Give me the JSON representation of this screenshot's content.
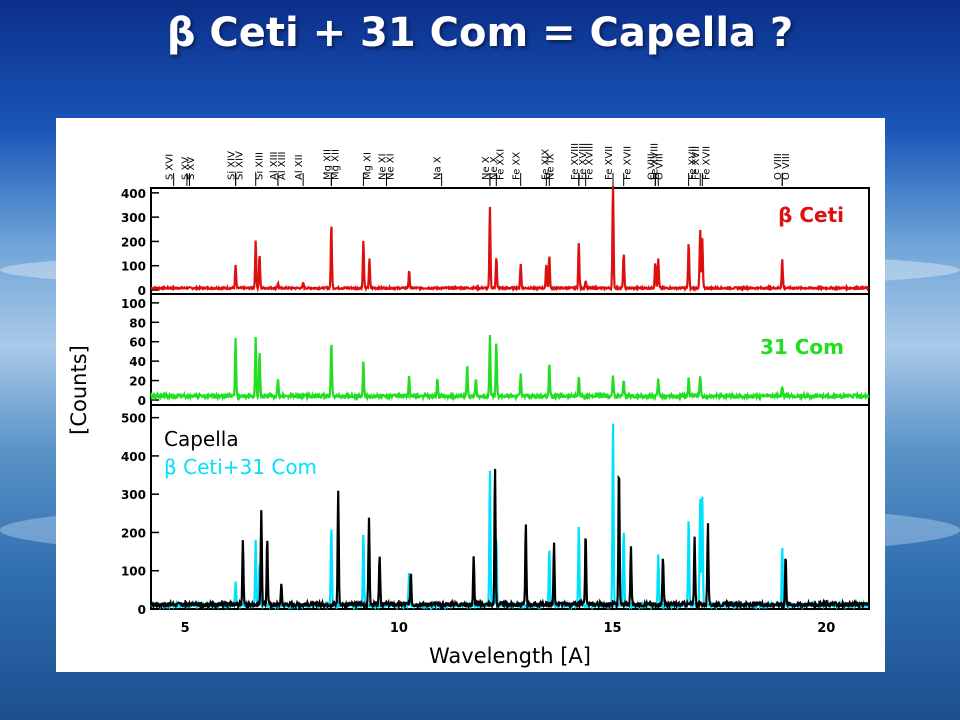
{
  "slide": {
    "title": "β Ceti + 31 Com = Capella ?"
  },
  "chart_data": {
    "type": "line",
    "xlabel": "Wavelength [A]",
    "ylabel": "[Counts]",
    "xlim": [
      4.2,
      21.0
    ],
    "x_ticks": [
      5,
      10,
      15,
      20
    ],
    "line_labels": [
      {
        "label": "S XVI",
        "x": 4.73
      },
      {
        "label": "S XV",
        "x": 5.04
      },
      {
        "label": "S XV",
        "x": 5.1
      },
      {
        "label": "Si XIV",
        "x": 6.18
      },
      {
        "label": "Si XIV",
        "x": 6.18
      },
      {
        "label": "Si XIII",
        "x": 6.65
      },
      {
        "label": "Al XIII",
        "x": 7.17
      },
      {
        "label": "Al XIII",
        "x": 7.17
      },
      {
        "label": "Al XII",
        "x": 7.76
      },
      {
        "label": "Mg XII",
        "x": 8.42
      },
      {
        "label": "Mg XII",
        "x": 8.42
      },
      {
        "label": "Mg XI",
        "x": 9.17
      },
      {
        "label": "Ne XI",
        "x": 9.71
      },
      {
        "label": "Ne XI",
        "x": 9.71
      },
      {
        "label": "Na X",
        "x": 11.0
      },
      {
        "label": "Ne X",
        "x": 12.13
      },
      {
        "label": "Ne X",
        "x": 12.13
      },
      {
        "label": "Fe XXI",
        "x": 12.28
      },
      {
        "label": "Fe XX",
        "x": 12.85
      },
      {
        "label": "Ne IX",
        "x": 13.45
      },
      {
        "label": "Fe XIX",
        "x": 13.52
      },
      {
        "label": "Fe XVIII",
        "x": 14.21
      },
      {
        "label": "Fe XVIII",
        "x": 14.21
      },
      {
        "label": "Fe XVIII",
        "x": 14.37
      },
      {
        "label": "Fe XVII",
        "x": 15.01
      },
      {
        "label": "Fe XVII",
        "x": 15.26
      },
      {
        "label": "O VIII",
        "x": 16.0
      },
      {
        "label": "O VIII",
        "x": 16.0
      },
      {
        "label": "Fe XVIII",
        "x": 16.07
      },
      {
        "label": "Fe XVII",
        "x": 16.78
      },
      {
        "label": "Fe XVII",
        "x": 17.05
      },
      {
        "label": "Fe XVII",
        "x": 17.1
      },
      {
        "label": "O VIII",
        "x": 18.97
      },
      {
        "label": "O VIII",
        "x": 18.97
      }
    ],
    "panels": [
      {
        "name": "beta-ceti",
        "legend": [
          "β Ceti"
        ],
        "legend_color": "#dd1010",
        "line_color": "#dd1010",
        "ylim": [
          0,
          420
        ],
        "y_ticks": [
          0,
          100,
          200,
          300,
          400
        ],
        "baseline": 8,
        "peaks": [
          [
            6.18,
            95
          ],
          [
            6.65,
            195
          ],
          [
            6.74,
            140
          ],
          [
            7.17,
            20
          ],
          [
            7.76,
            22
          ],
          [
            8.42,
            265
          ],
          [
            9.17,
            200
          ],
          [
            9.31,
            120
          ],
          [
            10.24,
            70
          ],
          [
            12.13,
            335
          ],
          [
            12.28,
            130
          ],
          [
            12.85,
            100
          ],
          [
            13.45,
            100
          ],
          [
            13.52,
            135
          ],
          [
            14.21,
            185
          ],
          [
            14.37,
            30
          ],
          [
            15.01,
            440
          ],
          [
            15.26,
            145
          ],
          [
            16.0,
            110
          ],
          [
            16.07,
            120
          ],
          [
            16.78,
            190
          ],
          [
            17.05,
            240
          ],
          [
            17.1,
            205
          ],
          [
            18.97,
            120
          ]
        ]
      },
      {
        "name": "31-com",
        "legend": [
          "31 Com"
        ],
        "legend_color": "#22dd22",
        "line_color": "#22dd22",
        "ylim": [
          0,
          105
        ],
        "y_ticks": [
          0,
          20,
          40,
          60,
          80,
          100
        ],
        "baseline": 4,
        "peaks": [
          [
            6.18,
            60
          ],
          [
            6.65,
            60
          ],
          [
            6.74,
            45
          ],
          [
            7.17,
            18
          ],
          [
            8.42,
            55
          ],
          [
            9.17,
            35
          ],
          [
            10.24,
            20
          ],
          [
            10.9,
            18
          ],
          [
            11.6,
            32
          ],
          [
            11.8,
            18
          ],
          [
            12.13,
            62
          ],
          [
            12.28,
            55
          ],
          [
            12.85,
            25
          ],
          [
            13.52,
            35
          ],
          [
            14.21,
            20
          ],
          [
            15.01,
            22
          ],
          [
            15.26,
            15
          ],
          [
            16.07,
            18
          ],
          [
            16.78,
            20
          ],
          [
            17.05,
            22
          ],
          [
            18.97,
            10
          ]
        ]
      },
      {
        "name": "capella",
        "legend": [
          "Capella",
          "β Ceti+31 Com"
        ],
        "legend_colors": [
          "#000000",
          "#00e0ff"
        ],
        "series": [
          {
            "name": "Capella",
            "color": "#000000",
            "baseline": 12,
            "peaks": [
              [
                6.35,
                170
              ],
              [
                6.78,
                250
              ],
              [
                6.92,
                175
              ],
              [
                7.25,
                50
              ],
              [
                8.58,
                300
              ],
              [
                9.3,
                230
              ],
              [
                9.55,
                130
              ],
              [
                10.28,
                85
              ],
              [
                11.75,
                125
              ],
              [
                12.25,
                360
              ],
              [
                12.97,
                210
              ],
              [
                13.63,
                160
              ],
              [
                14.37,
                190
              ],
              [
                15.15,
                365
              ],
              [
                15.43,
                150
              ],
              [
                16.18,
                130
              ],
              [
                16.92,
                180
              ],
              [
                17.23,
                210
              ],
              [
                19.05,
                130
              ]
            ]
          },
          {
            "name": "β Ceti+31 Com",
            "color": "#00e0ff",
            "baseline": 10,
            "peaks": [
              [
                6.18,
                60
              ],
              [
                6.65,
                170
              ],
              [
                6.74,
                110
              ],
              [
                8.42,
                210
              ],
              [
                9.17,
                190
              ],
              [
                10.24,
                90
              ],
              [
                12.13,
                360
              ],
              [
                12.28,
                180
              ],
              [
                13.52,
                150
              ],
              [
                14.21,
                210
              ],
              [
                15.01,
                480
              ],
              [
                15.26,
                200
              ],
              [
                16.07,
                130
              ],
              [
                16.78,
                230
              ],
              [
                17.05,
                280
              ],
              [
                17.1,
                280
              ],
              [
                18.97,
                150
              ]
            ]
          }
        ],
        "ylim": [
          0,
          520
        ],
        "y_ticks": [
          0,
          100,
          200,
          300,
          400,
          500
        ]
      }
    ]
  }
}
